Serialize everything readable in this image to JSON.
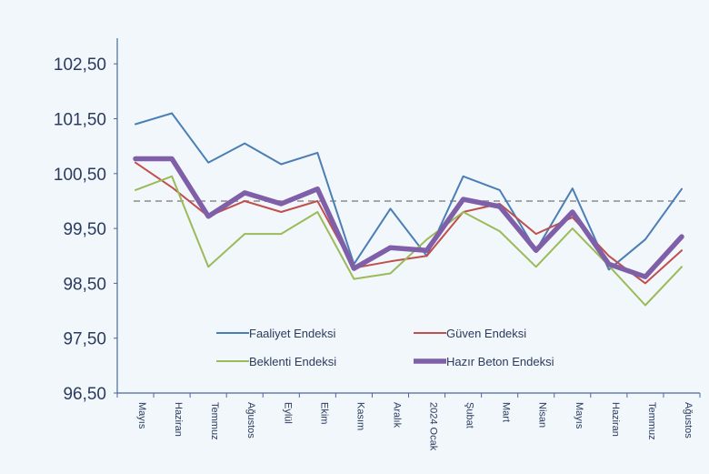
{
  "chart_data": {
    "type": "line",
    "title": "",
    "xlabel": "",
    "ylabel": "",
    "ylim": [
      96.5,
      103.0
    ],
    "y_ticks": [
      "96,50",
      "97,50",
      "98,50",
      "99,50",
      "100,50",
      "101,50",
      "102,50"
    ],
    "y_tick_values": [
      96.5,
      97.5,
      98.5,
      99.5,
      100.5,
      101.5,
      102.5
    ],
    "categories": [
      "Mayıs",
      "Haziran",
      "Temmuz",
      "Ağustos",
      "Eylül",
      "Ekim",
      "Kasım",
      "Aralık",
      "2024 Ocak",
      "Şubat",
      "Mart",
      "Nisan",
      "Mayıs",
      "Haziran",
      "Temmuz",
      "Ağustos"
    ],
    "reference_line": {
      "value": 100.0,
      "style": "dashed"
    },
    "grid": false,
    "legend": "inside-bottom",
    "series": [
      {
        "name": "Faaliyet Endeksi",
        "color": "#4a7eb5",
        "width": 2,
        "values": [
          101.4,
          101.6,
          100.7,
          101.05,
          100.67,
          100.88,
          98.85,
          99.86,
          99.0,
          100.45,
          100.2,
          99.1,
          100.23,
          98.75,
          99.3,
          100.22
        ]
      },
      {
        "name": "Güven Endeksi",
        "color": "#c0504d",
        "width": 2,
        "values": [
          100.7,
          100.25,
          99.72,
          100.0,
          99.8,
          100.0,
          98.78,
          98.9,
          99.0,
          99.8,
          99.95,
          99.4,
          99.7,
          99.0,
          98.5,
          99.1
        ]
      },
      {
        "name": "Beklenti Endeksi",
        "color": "#9bbb59",
        "width": 2,
        "values": [
          100.2,
          100.45,
          98.8,
          99.4,
          99.4,
          99.8,
          98.58,
          98.68,
          99.3,
          99.8,
          99.45,
          98.8,
          99.5,
          98.82,
          98.1,
          98.8
        ]
      },
      {
        "name": "Hazır Beton Endeksi",
        "color": "#7f5fa8",
        "width": 5.5,
        "values": [
          100.77,
          100.77,
          99.72,
          100.15,
          99.95,
          100.22,
          98.77,
          99.15,
          99.1,
          100.03,
          99.9,
          99.1,
          99.8,
          98.85,
          98.62,
          99.35
        ]
      }
    ]
  }
}
